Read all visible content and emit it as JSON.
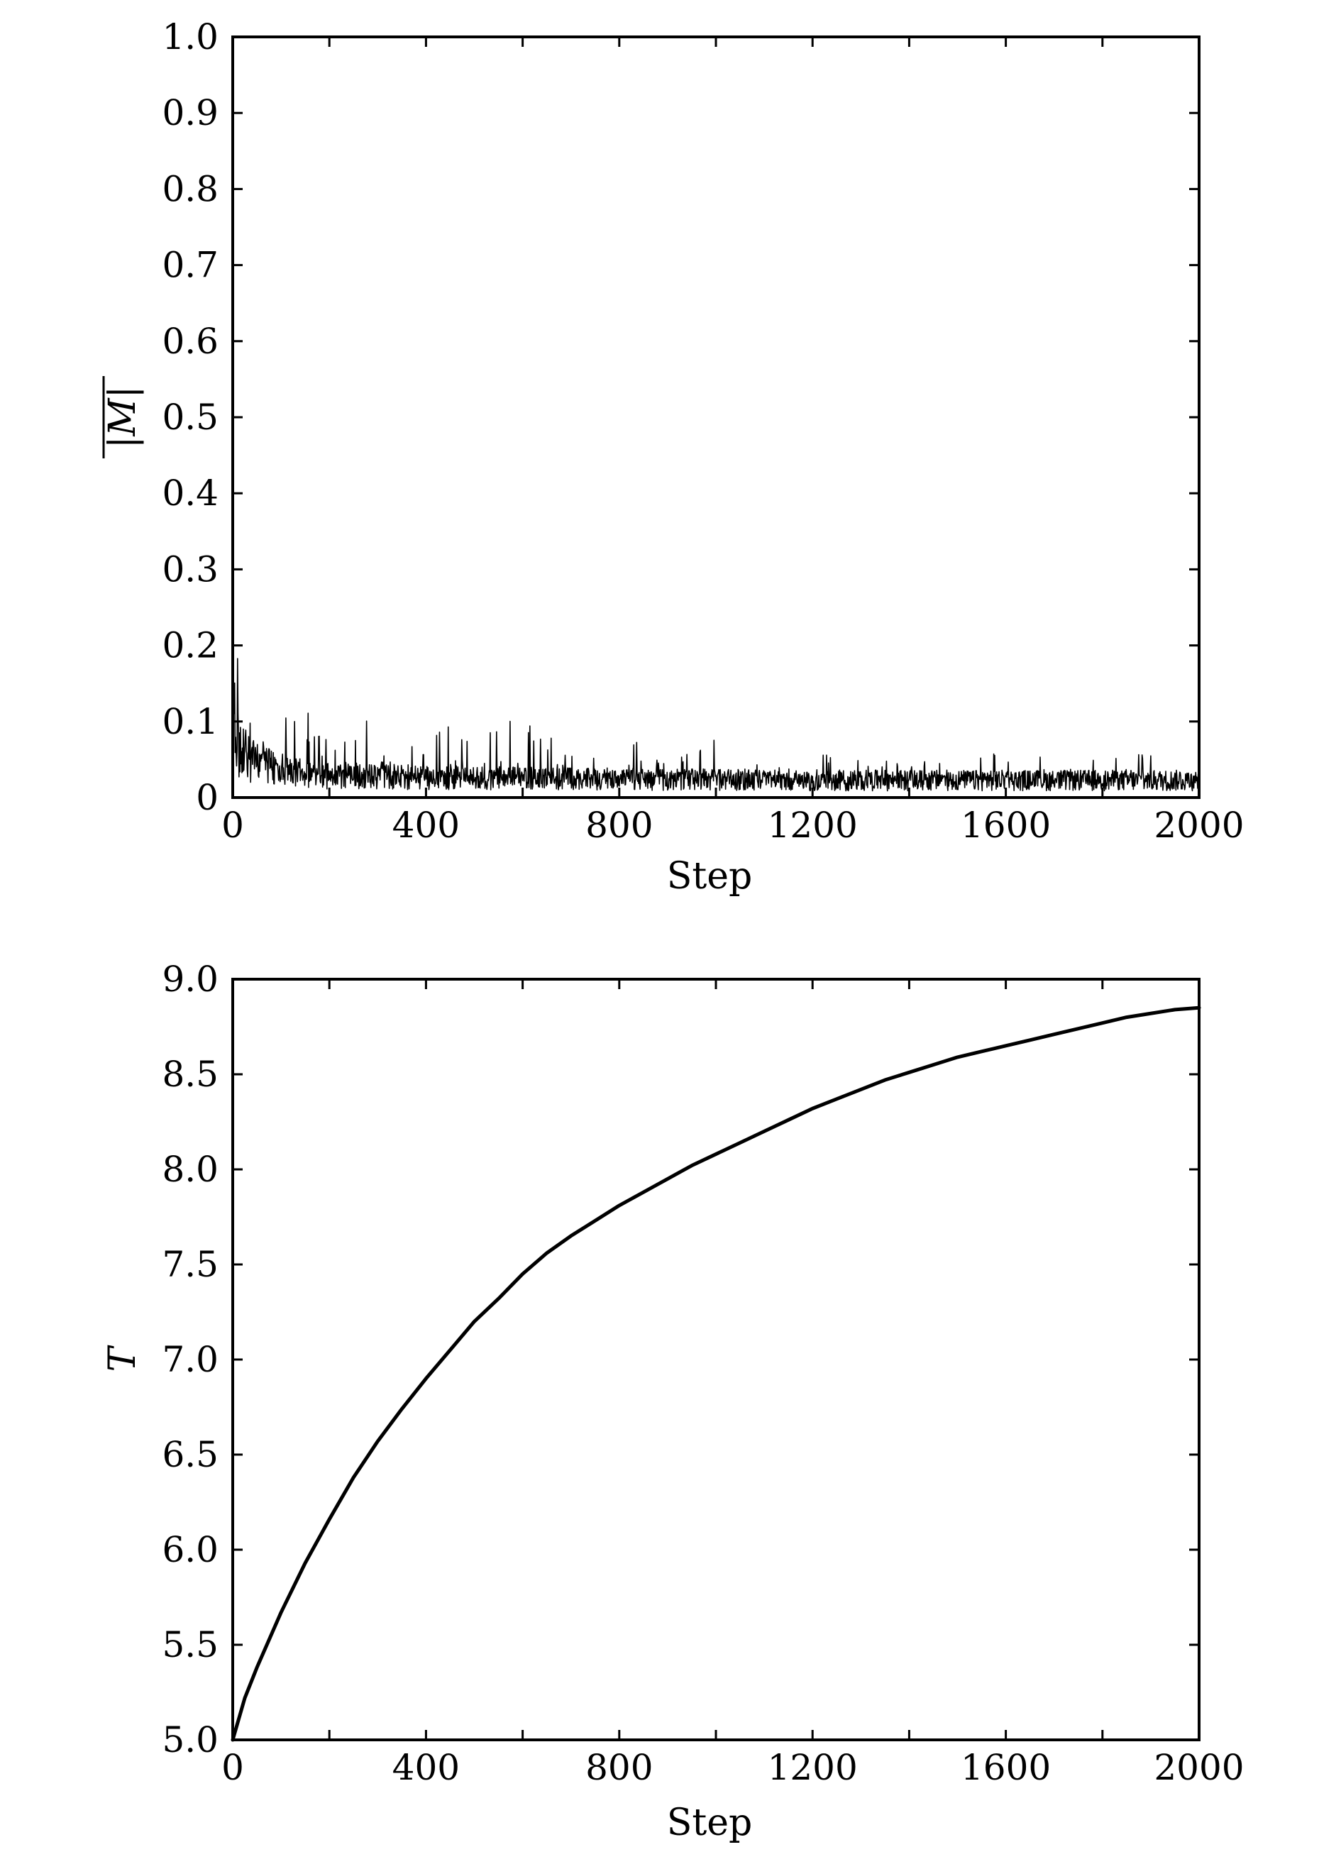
{
  "chart_data": [
    {
      "type": "line",
      "xlabel": "Step",
      "ylabel": "|M|",
      "ylabel_overline": true,
      "xlim": [
        0,
        2000
      ],
      "ylim": [
        0,
        1.0
      ],
      "xticks": [
        0,
        400,
        800,
        1200,
        1600,
        2000
      ],
      "yticks": [
        0,
        0.1,
        0.2,
        0.3,
        0.4,
        0.5,
        0.6,
        0.7,
        0.8,
        0.9,
        1.0
      ],
      "xtick_labels": [
        "0",
        "400",
        "800",
        "1200",
        "1600",
        "2000"
      ],
      "ytick_labels": [
        "0",
        "0.1",
        "0.2",
        "0.3",
        "0.4",
        "0.5",
        "0.6",
        "0.7",
        "0.8",
        "0.9",
        "1.0"
      ],
      "grid": false,
      "series": [
        {
          "color": "#000000",
          "style": "noisy-decay",
          "x": [
            0,
            5,
            10,
            15,
            20,
            30,
            40,
            50,
            60,
            80,
            100,
            120,
            140,
            150,
            160,
            180,
            200,
            250,
            300,
            350,
            400,
            450,
            500,
            550,
            600,
            650,
            700,
            750,
            800,
            820,
            850,
            900,
            950,
            1000,
            1050,
            1100,
            1150,
            1200,
            1300,
            1400,
            1500,
            1600,
            1700,
            1800,
            1900,
            2000
          ],
          "y": [
            0.2,
            0.28,
            0.19,
            0.25,
            0.17,
            0.12,
            0.09,
            0.1,
            0.13,
            0.12,
            0.1,
            0.11,
            0.09,
            0.21,
            0.07,
            0.1,
            0.08,
            0.09,
            0.12,
            0.08,
            0.06,
            0.11,
            0.07,
            0.1,
            0.12,
            0.08,
            0.07,
            0.06,
            0.06,
            0.1,
            0.05,
            0.05,
            0.06,
            0.08,
            0.05,
            0.05,
            0.04,
            0.06,
            0.05,
            0.05,
            0.05,
            0.06,
            0.06,
            0.06,
            0.06,
            0.05
          ],
          "baseline": [
            0.12,
            0.1,
            0.08,
            0.07,
            0.065,
            0.06,
            0.055,
            0.05,
            0.047,
            0.044,
            0.04,
            0.038,
            0.036,
            0.035,
            0.034,
            0.033,
            0.032,
            0.031,
            0.03,
            0.03,
            0.029,
            0.029,
            0.028,
            0.028,
            0.028,
            0.027,
            0.027,
            0.027,
            0.027,
            0.027,
            0.026,
            0.026,
            0.026,
            0.026,
            0.026,
            0.026,
            0.025,
            0.025,
            0.025,
            0.025,
            0.025,
            0.025,
            0.025,
            0.025,
            0.025,
            0.025
          ]
        }
      ]
    },
    {
      "type": "line",
      "xlabel": "Step",
      "ylabel": "T",
      "xlim": [
        0,
        2000
      ],
      "ylim": [
        5.0,
        9.0
      ],
      "xticks": [
        0,
        400,
        800,
        1200,
        1600,
        2000
      ],
      "yticks": [
        5.0,
        5.5,
        6.0,
        6.5,
        7.0,
        7.5,
        8.0,
        8.5,
        9.0
      ],
      "xtick_labels": [
        "0",
        "400",
        "800",
        "1200",
        "1600",
        "2000"
      ],
      "ytick_labels": [
        "5.0",
        "5.5",
        "6.0",
        "6.5",
        "7.0",
        "7.5",
        "8.0",
        "8.5",
        "9.0"
      ],
      "grid": false,
      "series": [
        {
          "color": "#000000",
          "x": [
            0,
            25,
            50,
            100,
            150,
            200,
            250,
            300,
            350,
            400,
            450,
            500,
            550,
            600,
            650,
            700,
            750,
            800,
            850,
            900,
            950,
            1000,
            1050,
            1100,
            1150,
            1200,
            1250,
            1300,
            1350,
            1400,
            1450,
            1500,
            1550,
            1600,
            1650,
            1700,
            1750,
            1800,
            1850,
            1900,
            1950,
            2000
          ],
          "y": [
            5.0,
            5.22,
            5.38,
            5.67,
            5.93,
            6.16,
            6.38,
            6.57,
            6.74,
            6.9,
            7.05,
            7.2,
            7.32,
            7.45,
            7.56,
            7.65,
            7.73,
            7.81,
            7.88,
            7.95,
            8.02,
            8.08,
            8.14,
            8.2,
            8.26,
            8.32,
            8.37,
            8.42,
            8.47,
            8.51,
            8.55,
            8.59,
            8.62,
            8.65,
            8.68,
            8.71,
            8.74,
            8.77,
            8.8,
            8.82,
            8.84,
            8.85
          ]
        }
      ]
    }
  ]
}
